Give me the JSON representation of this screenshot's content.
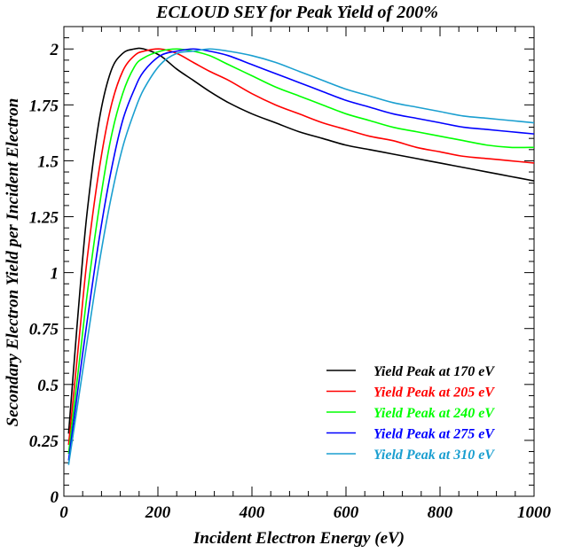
{
  "chart_data": {
    "type": "line",
    "title": "ECLOUD SEY for Peak Yield of 200%",
    "xlabel": "Incident Electron Energy (eV)",
    "ylabel": "Secondary Electron Yield per Incident Electron",
    "xlim": [
      0,
      1000
    ],
    "ylim": [
      0,
      2.1
    ],
    "x_ticks": [
      0,
      200,
      400,
      600,
      800,
      1000
    ],
    "x_tick_labels": [
      "0",
      "200",
      "400",
      "600",
      "800",
      "1000"
    ],
    "y_ticks": [
      0,
      0.25,
      0.5,
      0.75,
      1,
      1.25,
      1.5,
      1.75,
      2
    ],
    "y_tick_labels": [
      "0",
      "0.25",
      "0.5",
      "0.75",
      "1",
      "1.25",
      "1.5",
      "1.75",
      "2"
    ],
    "grid": false,
    "legend_position": "bottom-right",
    "x": [
      10,
      20,
      35,
      50,
      75,
      100,
      125,
      150,
      170,
      205,
      240,
      275,
      310,
      350,
      400,
      450,
      500,
      550,
      600,
      650,
      700,
      750,
      800,
      850,
      900,
      950,
      1000
    ],
    "series": [
      {
        "name": "Yield Peak at 170 eV",
        "color": "#000000",
        "values": [
          0.28,
          0.55,
          0.94,
          1.28,
          1.68,
          1.9,
          1.98,
          2.0,
          2.0,
          1.97,
          1.91,
          1.86,
          1.81,
          1.76,
          1.71,
          1.67,
          1.63,
          1.6,
          1.57,
          1.55,
          1.53,
          1.51,
          1.49,
          1.47,
          1.45,
          1.43,
          1.41
        ]
      },
      {
        "name": "Yield Peak at 205 eV",
        "color": "#ff0000",
        "values": [
          0.23,
          0.44,
          0.76,
          1.07,
          1.46,
          1.74,
          1.9,
          1.97,
          1.99,
          2.0,
          1.98,
          1.94,
          1.9,
          1.86,
          1.8,
          1.75,
          1.71,
          1.67,
          1.64,
          1.61,
          1.59,
          1.56,
          1.54,
          1.52,
          1.51,
          1.5,
          1.49
        ]
      },
      {
        "name": "Yield Peak at 240 eV",
        "color": "#00ff00",
        "values": [
          0.19,
          0.37,
          0.64,
          0.91,
          1.29,
          1.6,
          1.8,
          1.92,
          1.96,
          1.99,
          2.0,
          1.99,
          1.97,
          1.93,
          1.88,
          1.83,
          1.79,
          1.75,
          1.71,
          1.68,
          1.65,
          1.63,
          1.61,
          1.59,
          1.57,
          1.56,
          1.56
        ]
      },
      {
        "name": "Yield Peak at 275 eV",
        "color": "#0000ff",
        "values": [
          0.16,
          0.32,
          0.56,
          0.79,
          1.15,
          1.45,
          1.68,
          1.82,
          1.9,
          1.97,
          1.99,
          2.0,
          1.99,
          1.97,
          1.93,
          1.89,
          1.85,
          1.81,
          1.77,
          1.74,
          1.71,
          1.69,
          1.67,
          1.65,
          1.64,
          1.63,
          1.62
        ]
      },
      {
        "name": "Yield Peak at 310 eV",
        "color": "#1a9fd0",
        "values": [
          0.14,
          0.28,
          0.49,
          0.7,
          1.04,
          1.33,
          1.56,
          1.72,
          1.82,
          1.93,
          1.98,
          1.99,
          2.0,
          1.99,
          1.97,
          1.94,
          1.9,
          1.86,
          1.82,
          1.79,
          1.76,
          1.74,
          1.72,
          1.7,
          1.69,
          1.68,
          1.67
        ]
      }
    ]
  }
}
